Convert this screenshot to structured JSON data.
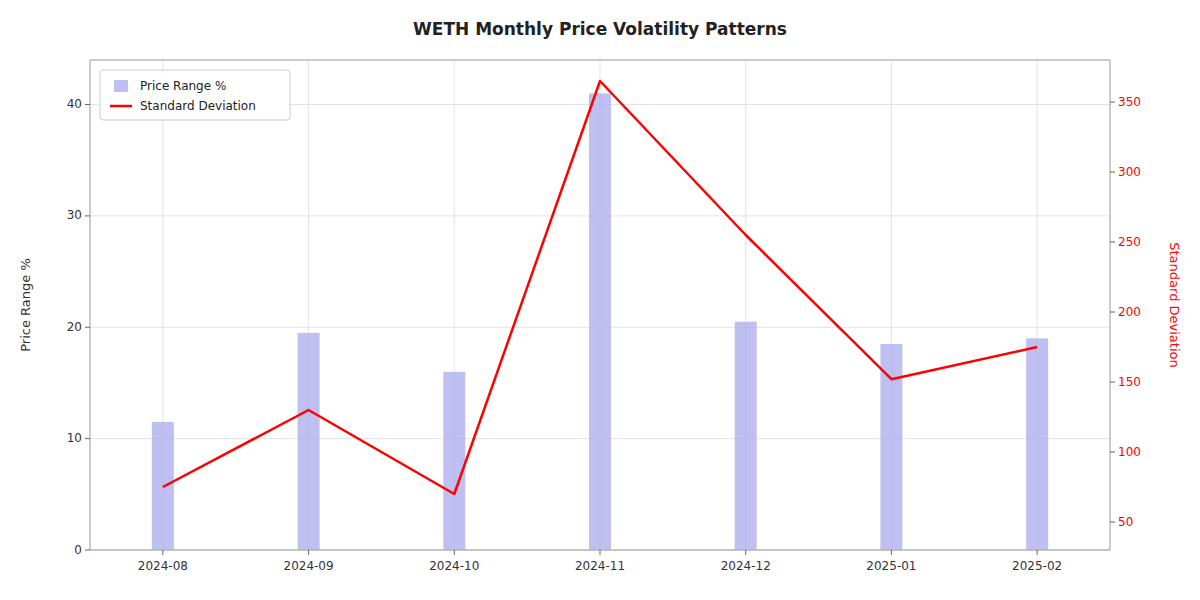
{
  "chart_data": {
    "type": "bar",
    "title": "WETH Monthly Price Volatility Patterns",
    "categories": [
      "2024-08",
      "2024-09",
      "2024-10",
      "2024-11",
      "2024-12",
      "2025-01",
      "2025-02"
    ],
    "series": [
      {
        "name": "Price Range %",
        "type": "bar",
        "color": "#aaaaee",
        "values": [
          11.5,
          19.5,
          16.0,
          41.0,
          20.5,
          18.5,
          19.0
        ]
      },
      {
        "name": "Standard Deviation",
        "type": "line",
        "color": "red",
        "axis": "y2",
        "values": [
          75,
          130,
          70,
          365,
          255,
          152,
          175
        ]
      }
    ],
    "y_label": "Price Range %",
    "y2_label": "Standard Deviation",
    "ylim": [
      0,
      44
    ],
    "yticks": [
      0,
      10,
      20,
      30,
      40
    ],
    "y2lim": [
      30,
      380
    ],
    "y2ticks": [
      50,
      100,
      150,
      200,
      250,
      300,
      350
    ],
    "grid": true,
    "legend": "upper left"
  }
}
